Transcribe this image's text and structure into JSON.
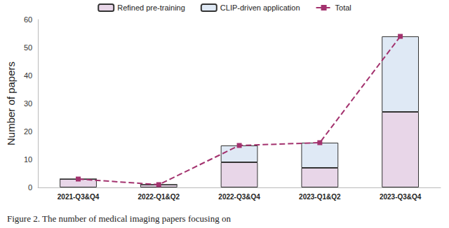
{
  "chart_data": {
    "type": "bar",
    "stacked": true,
    "grid": false,
    "legend": "top",
    "y_label": "Number of papers",
    "annotations": [
      "Figure 2. The number of medical imaging papers focusing on"
    ],
    "categories": [
      "2021-Q3&Q4",
      "2022-Q1&Q2",
      "2022-Q3&Q4",
      "2023-Q1&Q2",
      "2023-Q3&Q4"
    ],
    "ylim": [
      0,
      60
    ],
    "yticks": [
      0,
      10,
      20,
      30,
      40,
      50,
      60
    ],
    "series": [
      {
        "name": "Refined pre-training",
        "type": "bar",
        "color": "#e8d6e8",
        "values": [
          3,
          1,
          9,
          7,
          27
        ]
      },
      {
        "name": "CLIP-driven application",
        "type": "bar",
        "color": "#dfe9f5",
        "values": [
          0,
          0,
          6,
          9,
          27
        ]
      },
      {
        "name": "Total",
        "type": "line",
        "color": "#a3326e",
        "marker": "square",
        "line_style": "dashed",
        "values": [
          3,
          1,
          15,
          16,
          54
        ]
      }
    ]
  }
}
